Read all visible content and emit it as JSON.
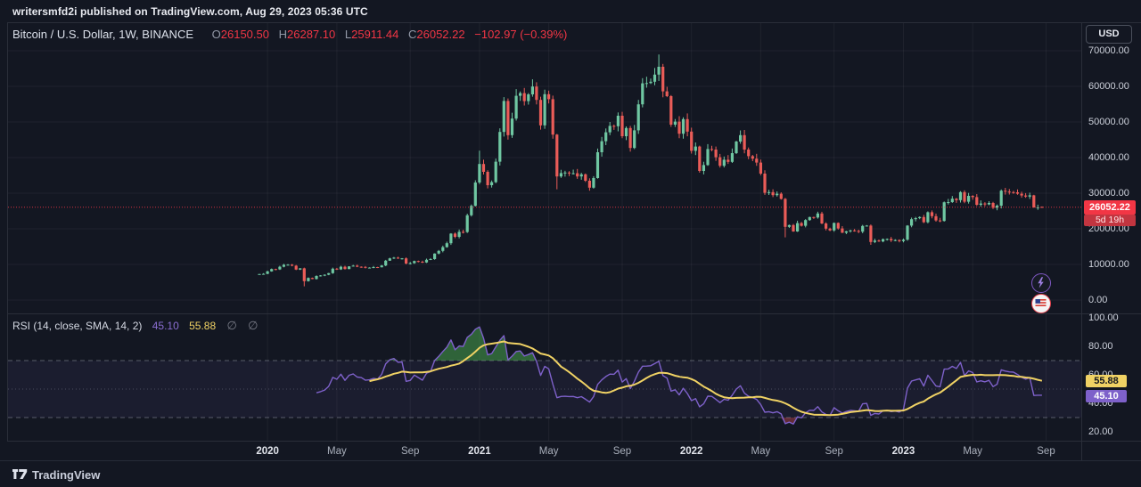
{
  "header": {
    "published_line": "writersmfd2i published on TradingView.com, Aug 29, 2023 05:36 UTC"
  },
  "legend": {
    "title": "Bitcoin / U.S. Dollar, 1W, BINANCE",
    "o_label": "O",
    "o_value": "26150.50",
    "h_label": "H",
    "h_value": "26287.10",
    "l_label": "L",
    "l_value": "25911.44",
    "c_label": "C",
    "c_value": "26052.22",
    "change": "−102.97 (−0.39%)"
  },
  "price_axis": {
    "currency": "USD",
    "labels": [
      "70000.00",
      "60000.00",
      "50000.00",
      "40000.00",
      "30000.00",
      "20000.00",
      "10000.00",
      "0.00"
    ],
    "values": [
      70000,
      60000,
      50000,
      40000,
      30000,
      20000,
      10000,
      0
    ],
    "last_price": "26052.22",
    "countdown": "5d 19h"
  },
  "rsi": {
    "title": "RSI (14, close, SMA, 14, 2)",
    "rsi_value": "45.10",
    "ma_value": "55.88",
    "slash1": "∅",
    "slash2": "∅",
    "axis_labels": [
      "100.00",
      "80.00",
      "60.00",
      "40.00",
      "20.00"
    ],
    "axis_values": [
      100,
      80,
      60,
      40,
      20
    ]
  },
  "time_axis": {
    "labels": [
      {
        "text": "2020",
        "week": 2,
        "major": true
      },
      {
        "text": "May",
        "week": 19,
        "major": false
      },
      {
        "text": "Sep",
        "week": 37,
        "major": false
      },
      {
        "text": "2021",
        "week": 54,
        "major": true
      },
      {
        "text": "May",
        "week": 71,
        "major": false
      },
      {
        "text": "Sep",
        "week": 89,
        "major": false
      },
      {
        "text": "2022",
        "week": 106,
        "major": true
      },
      {
        "text": "May",
        "week": 123,
        "major": false
      },
      {
        "text": "Sep",
        "week": 141,
        "major": false
      },
      {
        "text": "2023",
        "week": 158,
        "major": true
      },
      {
        "text": "May",
        "week": 175,
        "major": false
      },
      {
        "text": "Sep",
        "week": 193,
        "major": false
      }
    ]
  },
  "footer": {
    "brand": "TradingView"
  },
  "colors": {
    "bg": "#131722",
    "frame": "#2a2e39",
    "grid": "rgba(255,255,255,0.05)",
    "up": "#6fc7a2",
    "down": "#ea5c58",
    "accent_red": "#f23645",
    "rsi_line": "#7e61ca",
    "rsi_ma": "#f0d264",
    "band_line": "#8f93a0",
    "band_fill": "rgba(126,98,202,0.08)",
    "overbought_fill": "rgba(76,175,80,0.5)",
    "oversold_fill": "rgba(247,82,95,0.35)"
  },
  "chart_data": [
    {
      "type": "candlestick",
      "title": "Bitcoin / U.S. Dollar",
      "exchange": "BINANCE",
      "timeframe": "1W",
      "start_week": "2019-12-23",
      "interval_days": 7,
      "ylim": [
        0,
        78000
      ],
      "y_gridlines": [
        0,
        10000,
        20000,
        30000,
        40000,
        50000,
        60000,
        70000
      ],
      "first_open": 7150,
      "closes": [
        7290,
        7350,
        8050,
        8700,
        8600,
        9350,
        9900,
        9920,
        9650,
        8550,
        8900,
        5300,
        6200,
        5900,
        6750,
        6900,
        7100,
        7550,
        8800,
        8600,
        9350,
        8700,
        9450,
        9650,
        9350,
        9300,
        9050,
        9100,
        9250,
        9200,
        9700,
        11050,
        11700,
        11900,
        11650,
        11700,
        10250,
        10350,
        10950,
        10750,
        10550,
        11300,
        11500,
        13050,
        13800,
        14850,
        15950,
        18650,
        17750,
        19150,
        19100,
        23800,
        26450,
        33000,
        38200,
        36000,
        32250,
        33100,
        38850,
        47200,
        55900,
        46300,
        50950,
        57350,
        58100,
        55850,
        57750,
        59950,
        56200,
        49050,
        57800,
        56400,
        46450,
        34700,
        35650,
        35800,
        35550,
        35600,
        34700,
        35300,
        33500,
        31550,
        34250,
        41500,
        44600,
        47100,
        48900,
        48800,
        51750,
        46000,
        48300,
        42700,
        47650,
        54950,
        60850,
        60930,
        61300,
        63300,
        65500,
        58600,
        57250,
        49250,
        50100,
        46700,
        50800,
        47300,
        41900,
        43100,
        36250,
        37900,
        42400,
        42250,
        40100,
        37700,
        39400,
        38800,
        41250,
        44500,
        46300,
        42250,
        40400,
        39700,
        38600,
        35500,
        30100,
        30300,
        29450,
        29850,
        28400,
        20550,
        21050,
        19250,
        21600,
        20850,
        22450,
        23300,
        23175,
        24300,
        21500,
        20050,
        19550,
        21650,
        20100,
        18900,
        19300,
        19550,
        19400,
        19200,
        20800,
        20900,
        16300,
        16700,
        16450,
        17100,
        17150,
        16750,
        16850,
        16550,
        16950,
        20900,
        22700,
        23000,
        23300,
        21850,
        24650,
        23550,
        22350,
        22200,
        27450,
        27500,
        28450,
        28050,
        30300,
        27600,
        29250,
        28900,
        26750,
        27100,
        26850,
        27250,
        25900,
        26500,
        30700,
        30450,
        30300,
        30250,
        29850,
        29350,
        29050,
        29400,
        26000,
        26050,
        26052
      ],
      "wick_overrides": {
        "11": {
          "low": 3850
        },
        "54": {
          "high": 41950
        },
        "73": {
          "low": 31100
        },
        "98": {
          "high": 68950
        },
        "129": {
          "low": 17600
        },
        "150": {
          "low": 15500
        }
      },
      "last_candle": {
        "open": 26150.5,
        "high": 26287.1,
        "low": 25911.44,
        "close": 26052.22
      },
      "last_price_line": 26052.22
    },
    {
      "type": "line",
      "title": "RSI (14, close, SMA, 14, 2)",
      "derivation": "RSI(14) of weekly closes; MA = SMA(14) of RSI",
      "current": {
        "rsi": 45.1,
        "ma": 55.88
      },
      "bands": {
        "upper": 70,
        "middle": 50,
        "lower": 30
      },
      "ylim": [
        14,
        103
      ],
      "axis_ticks": [
        100,
        80,
        60,
        40,
        20
      ]
    }
  ]
}
